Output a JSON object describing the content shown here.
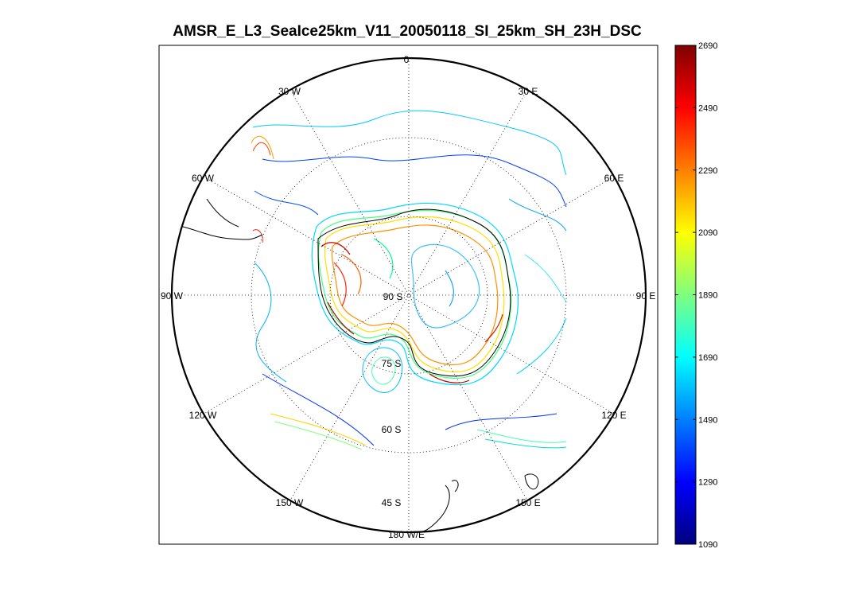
{
  "figure": {
    "title": "AMSR_E_L3_SeaIce25km_V11_20050118_SI_25km_SH_23H_DSC"
  },
  "map": {
    "projection": "south polar stereographic",
    "meridian_labels": {
      "m0": "0",
      "m30e": "30 E",
      "m60e": "60 E",
      "m90e": "90 E",
      "m120e": "120 E",
      "m150e": "150 E",
      "m180": "180 W/E",
      "m150w": "150 W",
      "m120w": "120 W",
      "m90w": "90 W",
      "m60w": "60 W",
      "m30w": "30 W"
    },
    "parallel_labels": {
      "p90": "90 S",
      "p75": "75 S",
      "p60": "60 S",
      "p45": "45 S"
    },
    "grid": "dotted",
    "contour_colormap": "jet"
  },
  "colorbar": {
    "min": 1090,
    "max": 2690,
    "tick_labels": [
      "2690",
      "2490",
      "2290",
      "2090",
      "1890",
      "1690",
      "1490",
      "1290",
      "1090"
    ],
    "colors": [
      "#00007f",
      "#0000ff",
      "#007fff",
      "#00ffff",
      "#7fff7f",
      "#ffff00",
      "#ff7f00",
      "#ff0000",
      "#7f0000"
    ]
  }
}
